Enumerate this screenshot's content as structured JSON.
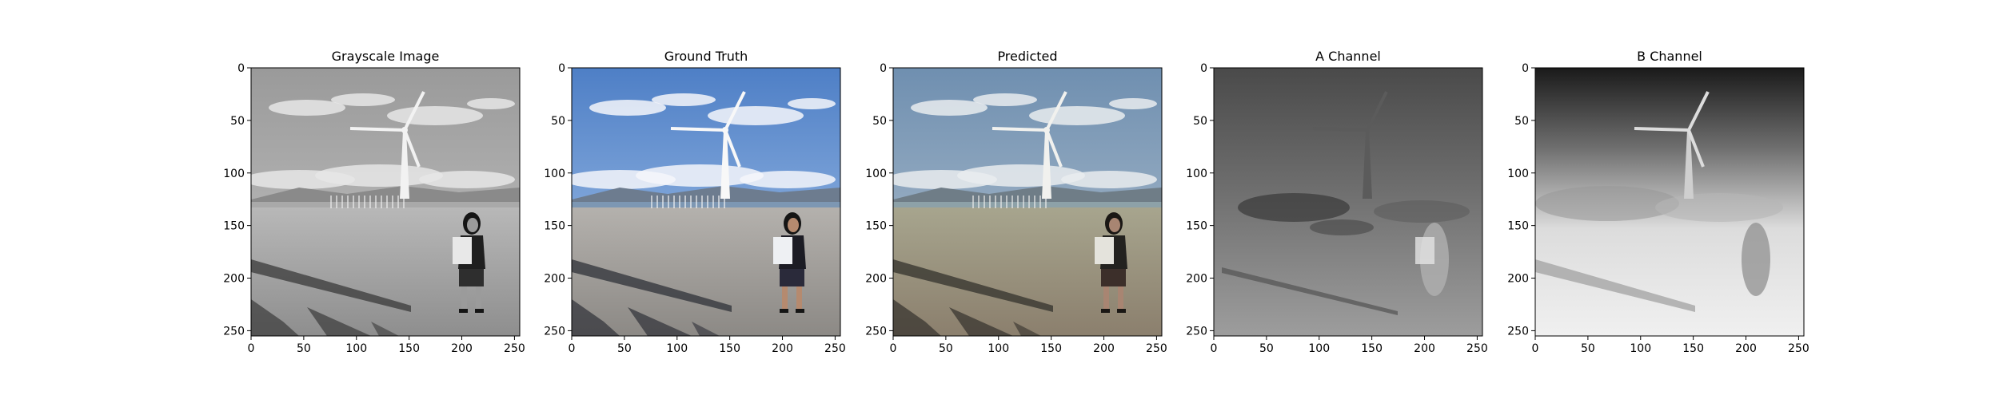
{
  "chart_data": [
    {
      "type": "image",
      "title": "Grayscale Image",
      "xlim": [
        0,
        255
      ],
      "ylim": [
        255,
        0
      ],
      "xticks": [
        0,
        50,
        100,
        150,
        200,
        250
      ],
      "yticks": [
        0,
        50,
        100,
        150,
        200,
        250
      ],
      "xlabel": "",
      "ylabel": "",
      "content": "grayscale beach scene: wind turbine, person holding sign, shadows on sand"
    },
    {
      "type": "image",
      "title": "Ground Truth",
      "xlim": [
        0,
        255
      ],
      "ylim": [
        255,
        0
      ],
      "xticks": [
        0,
        50,
        100,
        150,
        200,
        250
      ],
      "yticks": [
        0,
        50,
        100,
        150,
        200,
        250
      ],
      "xlabel": "",
      "ylabel": "",
      "content": "color beach scene: blue sky, wind turbine, person holding sign"
    },
    {
      "type": "image",
      "title": "Predicted",
      "xlim": [
        0,
        255
      ],
      "ylim": [
        255,
        0
      ],
      "xticks": [
        0,
        50,
        100,
        150,
        200,
        250
      ],
      "yticks": [
        0,
        50,
        100,
        150,
        200,
        250
      ],
      "xlabel": "",
      "ylabel": "",
      "content": "predicted colorization of beach scene"
    },
    {
      "type": "image",
      "title": "A Channel",
      "xlim": [
        0,
        255
      ],
      "ylim": [
        255,
        0
      ],
      "xticks": [
        0,
        50,
        100,
        150,
        200,
        250
      ],
      "yticks": [
        0,
        50,
        100,
        150,
        200,
        250
      ],
      "xlabel": "",
      "ylabel": "",
      "content": "A channel map rendered in gray"
    },
    {
      "type": "image",
      "title": "B Channel",
      "xlim": [
        0,
        255
      ],
      "ylim": [
        255,
        0
      ],
      "xticks": [
        0,
        50,
        100,
        150,
        200,
        250
      ],
      "yticks": [
        0,
        50,
        100,
        150,
        200,
        250
      ],
      "xlabel": "",
      "ylabel": "",
      "content": "B channel map rendered in gray"
    }
  ]
}
